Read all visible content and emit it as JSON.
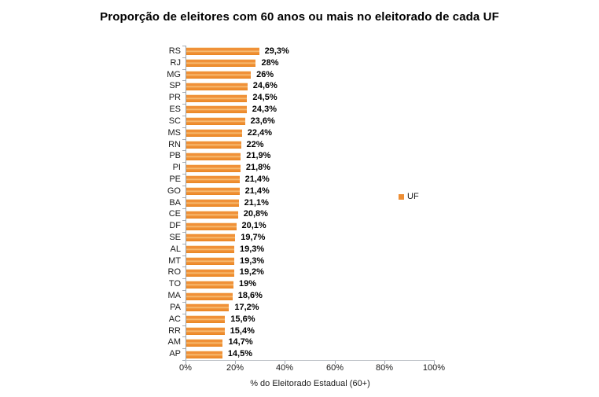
{
  "title": "Proporção de eleitores com 60 anos ou mais no eleitorado de cada UF",
  "legend": {
    "label": "UF",
    "swatch_color": "#ED8E35"
  },
  "x_axis": {
    "label": "% do Eleitorado Estadual (60+)",
    "ticks": [
      "0%",
      "20%",
      "40%",
      "60%",
      "80%",
      "100%"
    ],
    "min": 0,
    "max": 100
  },
  "colors": {
    "bar": "#F09138",
    "axis_line": "#A6ADB5",
    "label_text": "#1A1A1A"
  },
  "chart_data": {
    "type": "bar",
    "orientation": "horizontal",
    "title": "Proporção de eleitores com 60 anos ou mais no eleitorado de cada UF",
    "xlabel": "% do Eleitorado Estadual (60+)",
    "ylabel": "",
    "xlim": [
      0,
      100
    ],
    "x_ticks": [
      "0%",
      "20%",
      "40%",
      "60%",
      "80%",
      "100%"
    ],
    "grid": false,
    "legend_entries": [
      "UF"
    ],
    "legend_position": "right",
    "categories": [
      "RS",
      "RJ",
      "MG",
      "SP",
      "PR",
      "ES",
      "SC",
      "MS",
      "RN",
      "PB",
      "PI",
      "PE",
      "GO",
      "BA",
      "CE",
      "DF",
      "SE",
      "AL",
      "MT",
      "RO",
      "TO",
      "MA",
      "PA",
      "AC",
      "RR",
      "AM",
      "AP"
    ],
    "values": [
      29.3,
      28,
      26,
      24.6,
      24.5,
      24.3,
      23.6,
      22.4,
      22,
      21.9,
      21.8,
      21.4,
      21.4,
      21.1,
      20.8,
      20.1,
      19.7,
      19.3,
      19.3,
      19.2,
      19,
      18.6,
      17.2,
      15.6,
      15.4,
      14.7,
      14.5
    ],
    "value_labels": [
      "29,3%",
      "28%",
      "26%",
      "24,6%",
      "24,5%",
      "24,3%",
      "23,6%",
      "22,4%",
      "22%",
      "21,9%",
      "21,8%",
      "21,4%",
      "21,4%",
      "21,1%",
      "20,8%",
      "20,1%",
      "19,7%",
      "19,3%",
      "19,3%",
      "19,2%",
      "19%",
      "18,6%",
      "17,2%",
      "15,6%",
      "15,4%",
      "14,7%",
      "14,5%"
    ]
  }
}
